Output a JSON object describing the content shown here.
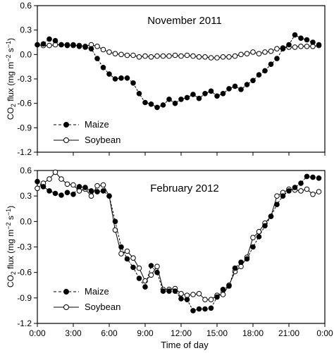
{
  "figure": {
    "shared_xlabel": "Time of day",
    "x_tick_labels": [
      "0:00",
      "3:00",
      "6:00",
      "9:00",
      "12:00",
      "15:00",
      "18:00",
      "21:00",
      "0:00"
    ]
  },
  "chart_data": [
    {
      "type": "line",
      "title": "November 2011",
      "xlabel": "Time of day",
      "ylabel_parts": [
        "CO",
        "2",
        " flux (mg m",
        "−2",
        " s",
        "−1",
        ")"
      ],
      "ylim": [
        -1.2,
        0.6
      ],
      "yticks": [
        0.6,
        0.3,
        0.0,
        -0.3,
        -0.6,
        -0.9,
        -1.2
      ],
      "ytick_labels": [
        "0.6",
        "0.3",
        "0.0",
        "-0.3",
        "-0.6",
        "-0.9",
        "-1.2"
      ],
      "xlim": [
        0,
        24
      ],
      "xticks": [
        0,
        3,
        6,
        9,
        12,
        15,
        18,
        21,
        24
      ],
      "grid": false,
      "legend_position": "bottom-left",
      "series": [
        {
          "name": "Maize",
          "marker": "filled-circle",
          "line_style": "dashed",
          "x": [
            0,
            0.5,
            1,
            1.5,
            2,
            2.5,
            3,
            3.5,
            4,
            4.5,
            5,
            5.5,
            6,
            6.5,
            7,
            7.5,
            8,
            8.5,
            9,
            9.5,
            10,
            10.5,
            11,
            11.5,
            12,
            12.5,
            13,
            13.5,
            14,
            14.5,
            15,
            15.5,
            16,
            16.5,
            17,
            17.5,
            18,
            18.5,
            19,
            19.5,
            20,
            20.5,
            21,
            21.5,
            22,
            22.5,
            23,
            23.5
          ],
          "values": [
            0.12,
            0.13,
            0.19,
            0.17,
            0.12,
            0.11,
            0.12,
            0.1,
            0.09,
            0.07,
            -0.05,
            -0.16,
            -0.24,
            -0.3,
            -0.29,
            -0.29,
            -0.35,
            -0.48,
            -0.59,
            -0.61,
            -0.65,
            -0.62,
            -0.55,
            -0.6,
            -0.55,
            -0.53,
            -0.49,
            -0.54,
            -0.48,
            -0.45,
            -0.51,
            -0.48,
            -0.42,
            -0.39,
            -0.43,
            -0.37,
            -0.32,
            -0.25,
            -0.2,
            -0.12,
            -0.05,
            0.07,
            0.12,
            0.24,
            0.2,
            0.18,
            0.15,
            0.12
          ]
        },
        {
          "name": "Soybean",
          "marker": "open-circle",
          "line_style": "solid",
          "x": [
            0,
            0.5,
            1,
            1.5,
            2,
            2.5,
            3,
            3.5,
            4,
            4.5,
            5,
            5.5,
            6,
            6.5,
            7,
            7.5,
            8,
            8.5,
            9,
            9.5,
            10,
            10.5,
            11,
            11.5,
            12,
            12.5,
            13,
            13.5,
            14,
            14.5,
            15,
            15.5,
            16,
            16.5,
            17,
            17.5,
            18,
            18.5,
            19,
            19.5,
            20,
            20.5,
            21,
            21.5,
            22,
            22.5,
            23,
            23.5
          ],
          "values": [
            0.12,
            0.11,
            0.11,
            0.12,
            0.12,
            0.12,
            0.11,
            0.11,
            0.1,
            0.12,
            0.1,
            0.06,
            0.03,
            0.01,
            0.0,
            -0.01,
            -0.01,
            -0.03,
            -0.02,
            -0.03,
            -0.02,
            -0.02,
            -0.02,
            -0.01,
            -0.02,
            -0.01,
            -0.02,
            -0.03,
            -0.03,
            -0.04,
            -0.04,
            -0.03,
            -0.03,
            -0.02,
            0.0,
            0.01,
            0.03,
            0.01,
            0.03,
            0.04,
            0.07,
            0.08,
            0.09,
            0.09,
            0.1,
            0.1,
            0.1,
            0.11
          ]
        }
      ]
    },
    {
      "type": "line",
      "title": "February 2012",
      "xlabel": "Time of day",
      "ylabel_parts": [
        "CO",
        "2",
        " flux (mg m",
        "−2",
        " s",
        "−1",
        ")"
      ],
      "ylim": [
        -1.2,
        0.6
      ],
      "yticks": [
        0.6,
        0.3,
        0.0,
        -0.3,
        -0.6,
        -0.9,
        -1.2
      ],
      "ytick_labels": [
        "0.6",
        "0.3",
        "0.0",
        "-0.3",
        "-0.6",
        "-0.9",
        "-1.2"
      ],
      "xlim": [
        0,
        24
      ],
      "xticks": [
        0,
        3,
        6,
        9,
        12,
        15,
        18,
        21,
        24
      ],
      "grid": false,
      "legend_position": "bottom-left",
      "series": [
        {
          "name": "Maize",
          "marker": "filled-circle",
          "line_style": "dashed",
          "x": [
            0,
            0.5,
            1,
            1.5,
            2,
            2.5,
            3,
            3.5,
            4,
            4.5,
            5,
            5.5,
            6,
            6.5,
            7,
            7.5,
            8,
            8.5,
            9,
            9.5,
            10,
            10.5,
            11,
            11.5,
            12,
            12.5,
            13,
            13.5,
            14,
            14.5,
            15,
            15.5,
            16,
            16.5,
            17,
            17.5,
            18,
            18.5,
            19,
            19.5,
            20,
            20.5,
            21,
            21.5,
            22,
            22.5,
            23,
            23.5
          ],
          "values": [
            0.47,
            0.41,
            0.36,
            0.33,
            0.31,
            0.34,
            0.32,
            0.41,
            0.4,
            0.36,
            0.35,
            0.36,
            0.3,
            0.0,
            -0.3,
            -0.44,
            -0.54,
            -0.67,
            -0.77,
            -0.52,
            -0.6,
            -0.82,
            -0.82,
            -0.82,
            -0.91,
            -0.92,
            -1.05,
            -1.03,
            -1.03,
            -1.02,
            -0.89,
            -0.8,
            -0.76,
            -0.55,
            -0.48,
            -0.44,
            -0.3,
            -0.18,
            -0.05,
            0.06,
            0.2,
            0.3,
            0.36,
            0.4,
            0.45,
            0.53,
            0.52,
            0.51
          ]
        },
        {
          "name": "Soybean",
          "marker": "open-circle",
          "line_style": "solid",
          "x": [
            0,
            0.5,
            1,
            1.5,
            2,
            2.5,
            3,
            3.5,
            4,
            4.5,
            5,
            5.5,
            6,
            6.5,
            7,
            7.5,
            8,
            8.5,
            9,
            9.5,
            10,
            10.5,
            11,
            11.5,
            12,
            12.5,
            13,
            13.5,
            14,
            14.5,
            15,
            15.5,
            16,
            16.5,
            17,
            17.5,
            18,
            18.5,
            19,
            19.5,
            20,
            20.5,
            21,
            21.5,
            22,
            22.5,
            23,
            23.5
          ],
          "values": [
            0.39,
            0.45,
            0.5,
            0.58,
            0.5,
            0.44,
            0.43,
            0.36,
            0.38,
            0.3,
            0.42,
            0.43,
            0.3,
            -0.1,
            -0.38,
            -0.35,
            -0.43,
            -0.55,
            -0.7,
            -0.63,
            -0.53,
            -0.8,
            -0.8,
            -0.79,
            -0.85,
            -0.87,
            -0.86,
            -0.85,
            -0.92,
            -0.92,
            -0.87,
            -0.86,
            -0.75,
            -0.59,
            -0.53,
            -0.42,
            -0.19,
            -0.12,
            -0.02,
            0.06,
            0.3,
            0.34,
            0.38,
            0.37,
            0.36,
            0.38,
            0.32,
            0.35
          ]
        }
      ]
    }
  ]
}
